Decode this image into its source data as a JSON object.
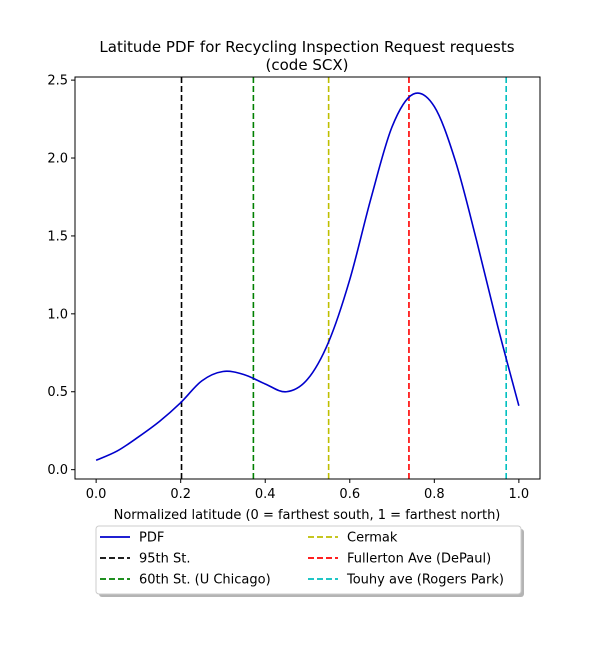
{
  "chart_data": {
    "type": "line",
    "title_line1": "Latitude PDF for Recycling Inspection Request  requests",
    "title_line2": "(code SCX)",
    "xlabel": "Normalized latitude (0 = farthest south, 1 = farthest north)",
    "ylabel": "",
    "xlim": [
      -0.05,
      1.05
    ],
    "ylim": [
      -0.06,
      2.52
    ],
    "xticks": [
      0.0,
      0.2,
      0.4,
      0.6,
      0.8,
      1.0
    ],
    "xtick_labels": [
      "0.0",
      "0.2",
      "0.4",
      "0.6",
      "0.8",
      "1.0"
    ],
    "yticks": [
      0.0,
      0.5,
      1.0,
      1.5,
      2.0,
      2.5
    ],
    "ytick_labels": [
      "0.0",
      "0.5",
      "1.0",
      "1.5",
      "2.0",
      "2.5"
    ],
    "grid": false,
    "legend_placement": "below-center",
    "series": [
      {
        "name": "PDF",
        "color": "#0000cc",
        "x": [
          0.0,
          0.05,
          0.1,
          0.15,
          0.2,
          0.25,
          0.3,
          0.35,
          0.4,
          0.45,
          0.5,
          0.55,
          0.6,
          0.65,
          0.7,
          0.75,
          0.8,
          0.85,
          0.9,
          0.95,
          1.0
        ],
        "y": [
          0.06,
          0.12,
          0.21,
          0.31,
          0.43,
          0.57,
          0.63,
          0.61,
          0.55,
          0.5,
          0.58,
          0.82,
          1.22,
          1.74,
          2.2,
          2.41,
          2.33,
          1.98,
          1.47,
          0.92,
          0.41
        ]
      }
    ],
    "vlines": [
      {
        "name": "95th St.",
        "x": 0.202,
        "color": "#000000"
      },
      {
        "name": "60th St. (U Chicago)",
        "x": 0.372,
        "color": "#008000"
      },
      {
        "name": "Cermak",
        "x": 0.55,
        "color": "#bfbf00"
      },
      {
        "name": "Fullerton Ave (DePaul)",
        "x": 0.74,
        "color": "#ff0000"
      },
      {
        "name": "Touhy ave (Rogers Park)",
        "x": 0.97,
        "color": "#00bfbf"
      }
    ]
  }
}
